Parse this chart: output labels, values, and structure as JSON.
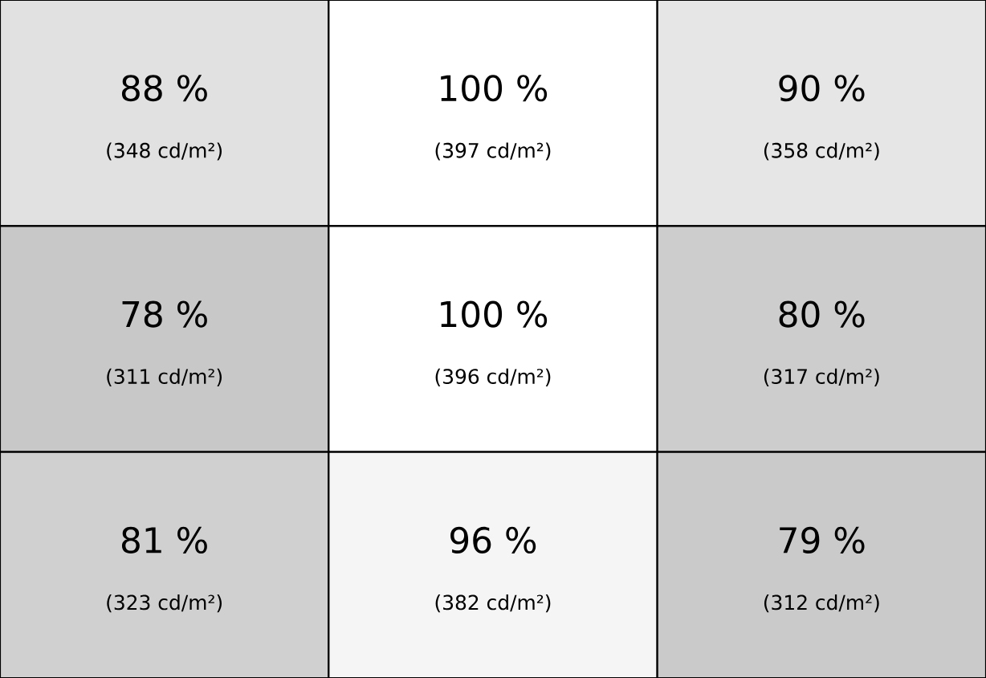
{
  "chart_data": {
    "type": "heatmap",
    "categories": [
      null,
      null,
      null
    ],
    "y_categories": [
      null,
      null,
      null
    ],
    "cells": [
      [
        88,
        100,
        90
      ],
      [
        78,
        100,
        80
      ],
      [
        81,
        96,
        79
      ]
    ],
    "cell_labels": [
      [
        "88 %",
        "100 %",
        "90 %"
      ],
      [
        "78 %",
        "100 %",
        "80 %"
      ],
      [
        "81 %",
        "96 %",
        "79 %"
      ]
    ],
    "annotations": [
      "(348 cd/m²)",
      "(397 cd/m²)",
      "(358 cd/m²)",
      "(311 cd/m²)",
      "(396 cd/m²)",
      "(317 cd/m²)",
      "(323 cd/m²)",
      "(382 cd/m²)",
      "(312 cd/m²)"
    ]
  }
}
